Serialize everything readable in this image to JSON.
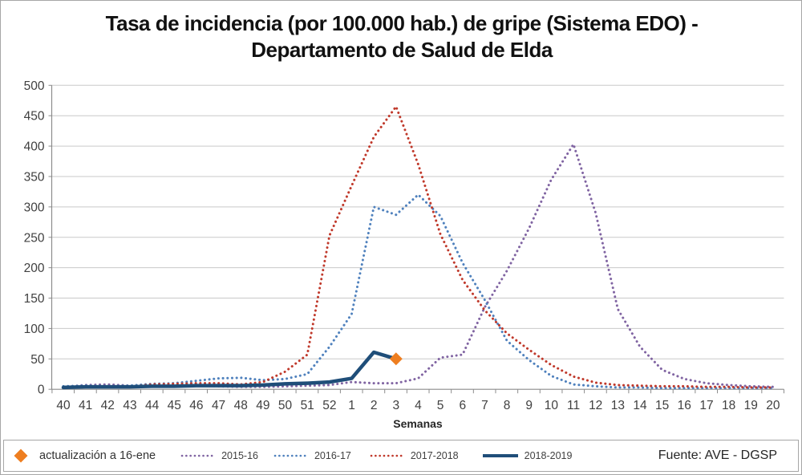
{
  "title": "Tasa de incidencia (por 100.000 hab.) de gripe (Sistema EDO) - Departamento de Salud de Elda",
  "chart_data": {
    "type": "line",
    "title": "Tasa de incidencia (por 100.000 hab.) de gripe (Sistema EDO) - Departamento de Salud de Elda",
    "xlabel": "Semanas",
    "ylabel": "",
    "ylim": [
      0,
      500
    ],
    "y_step": 50,
    "y_ticks": [
      0,
      50,
      100,
      150,
      200,
      250,
      300,
      350,
      400,
      450,
      500
    ],
    "grid": true,
    "legend_position": "bottom",
    "categories": [
      "40",
      "41",
      "42",
      "43",
      "44",
      "45",
      "46",
      "47",
      "48",
      "49",
      "50",
      "51",
      "52",
      "1",
      "2",
      "3",
      "4",
      "5",
      "6",
      "7",
      "8",
      "9",
      "10",
      "11",
      "12",
      "13",
      "14",
      "15",
      "16",
      "17",
      "18",
      "19",
      "20"
    ],
    "series": [
      {
        "name": "2015-16",
        "color": "#8064A2",
        "style": "dotted",
        "values": [
          4,
          7,
          8,
          6,
          5,
          5,
          6,
          5,
          4,
          4,
          5,
          6,
          7,
          12,
          10,
          10,
          18,
          52,
          57,
          135,
          195,
          265,
          345,
          403,
          290,
          132,
          70,
          32,
          17,
          10,
          7,
          5,
          4
        ]
      },
      {
        "name": "2016-17",
        "color": "#4F81BD",
        "style": "dotted",
        "values": [
          5,
          6,
          5,
          6,
          9,
          10,
          14,
          18,
          19,
          15,
          17,
          25,
          70,
          124,
          300,
          287,
          320,
          285,
          208,
          147,
          80,
          48,
          22,
          8,
          5,
          3,
          3,
          2,
          2,
          2,
          2,
          2,
          2
        ]
      },
      {
        "name": "2017-2018",
        "color": "#C0392B",
        "style": "dotted",
        "values": [
          3,
          4,
          4,
          4,
          8,
          9,
          10,
          10,
          8,
          12,
          29,
          57,
          253,
          335,
          415,
          465,
          370,
          255,
          180,
          130,
          92,
          65,
          40,
          21,
          11,
          7,
          6,
          5,
          5,
          4,
          4,
          3,
          3
        ]
      },
      {
        "name": "2018-2019",
        "color": "#1F4E79",
        "style": "solid",
        "values": [
          3,
          4,
          4,
          4,
          5,
          5,
          6,
          6,
          6,
          7,
          9,
          10,
          12,
          18,
          61,
          50
        ]
      }
    ],
    "update_marker": {
      "label": "actualización a 16-ene",
      "week": "3",
      "value": 50,
      "color": "#EE7E20",
      "shape": "diamond"
    }
  },
  "legend": {
    "update_label": "actualización a 16-ene",
    "series_labels": [
      "2015-16",
      "2016-17",
      "2017-2018",
      "2018-2019"
    ]
  },
  "footer": {
    "source": "Fuente: AVE - DGSP"
  },
  "style_colors": {
    "gridline": "#C9C9C9",
    "axis": "#8C8C8C",
    "tick_text": "#404040"
  }
}
